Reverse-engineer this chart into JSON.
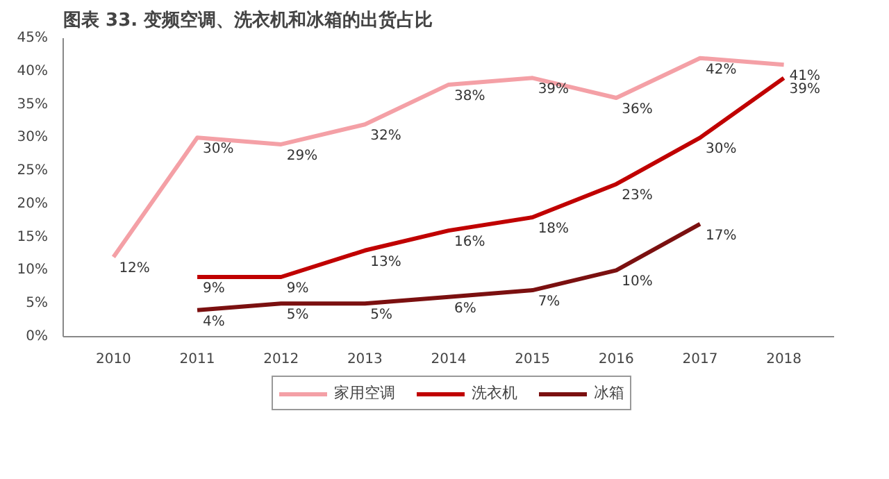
{
  "chart_data": {
    "type": "line",
    "title": "图表 33. 变频空调、洗衣机和冰箱的出货占比",
    "categories": [
      "2010",
      "2011",
      "2012",
      "2013",
      "2014",
      "2015",
      "2016",
      "2017",
      "2018"
    ],
    "series": [
      {
        "name": "家用空调",
        "color": "#f4a0a6",
        "values": [
          12,
          30,
          29,
          32,
          38,
          39,
          36,
          42,
          41
        ],
        "value_labels": [
          "12%",
          "30%",
          "29%",
          "32%",
          "38%",
          "39%",
          "36%",
          "42%",
          "41%"
        ]
      },
      {
        "name": "洗衣机",
        "color": "#c00000",
        "values": [
          null,
          9,
          9,
          13,
          16,
          18,
          23,
          30,
          39
        ],
        "value_labels": [
          null,
          "9%",
          "9%",
          "13%",
          "16%",
          "18%",
          "23%",
          "30%",
          "39%"
        ]
      },
      {
        "name": "冰箱",
        "color": "#7b1010",
        "values": [
          null,
          4,
          5,
          5,
          6,
          7,
          10,
          17,
          null
        ],
        "value_labels": [
          null,
          "4%",
          "5%",
          "5%",
          "6%",
          "7%",
          "10%",
          "17%",
          null
        ]
      }
    ],
    "ylim": [
      0,
      45
    ],
    "yticks": [
      {
        "value": 0,
        "label": "0%"
      },
      {
        "value": 5,
        "label": "5%"
      },
      {
        "value": 10,
        "label": "10%"
      },
      {
        "value": 15,
        "label": "15%"
      },
      {
        "value": 20,
        "label": "20%"
      },
      {
        "value": 25,
        "label": "25%"
      },
      {
        "value": 30,
        "label": "30%"
      },
      {
        "value": 35,
        "label": "35%"
      },
      {
        "value": 40,
        "label": "40%"
      },
      {
        "value": 45,
        "label": "45%"
      }
    ],
    "legend": "bottom",
    "line_style": "solid"
  }
}
